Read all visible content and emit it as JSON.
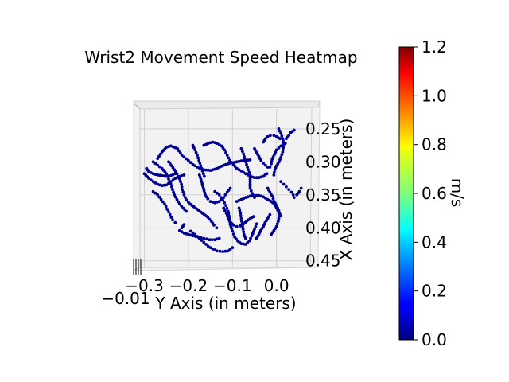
{
  "chart_data": {
    "type": "scatter",
    "projection": "3d",
    "title": "Wrist2 Movement Speed Heatmap",
    "xlabel": "Y Axis (in meters)",
    "ylabel": "X Axis (in meters)",
    "x_ticks": [
      "−0.3",
      "−0.2",
      "−0.1",
      "0.0"
    ],
    "x_tick_values": [
      -0.3,
      -0.2,
      -0.1,
      0.0
    ],
    "y_ticks": [
      "0.25",
      "0.30",
      "0.35",
      "0.40",
      "0.45"
    ],
    "y_tick_values": [
      0.25,
      0.3,
      0.35,
      0.4,
      0.45
    ],
    "z_tick_label": "−0.01",
    "xlim": [
      -0.31,
      0.08
    ],
    "ylim": [
      0.22,
      0.46
    ],
    "point_color": "#00008f",
    "colorbar": {
      "label": "m/s",
      "ticks": [
        "0.0",
        "0.2",
        "0.4",
        "0.6",
        "0.8",
        "1.0",
        "1.2"
      ],
      "tick_values": [
        0.0,
        0.2,
        0.4,
        0.6,
        0.8,
        1.0,
        1.2
      ],
      "range": [
        0.0,
        1.2
      ],
      "colormap": "jet"
    },
    "paths": [
      [
        [
          -0.27,
          0.295
        ],
        [
          -0.26,
          0.285
        ],
        [
          -0.25,
          0.278
        ],
        [
          -0.24,
          0.276
        ],
        [
          -0.225,
          0.28
        ],
        [
          -0.215,
          0.29
        ],
        [
          -0.2,
          0.298
        ],
        [
          -0.19,
          0.304
        ],
        [
          -0.18,
          0.308
        ],
        [
          -0.165,
          0.312
        ],
        [
          -0.15,
          0.313
        ],
        [
          -0.135,
          0.31
        ],
        [
          -0.12,
          0.305
        ],
        [
          -0.105,
          0.302
        ],
        [
          -0.09,
          0.3
        ],
        [
          -0.075,
          0.298
        ],
        [
          -0.06,
          0.297
        ]
      ],
      [
        [
          -0.295,
          0.31
        ],
        [
          -0.29,
          0.315
        ],
        [
          -0.28,
          0.318
        ],
        [
          -0.27,
          0.32
        ],
        [
          -0.26,
          0.321
        ],
        [
          -0.25,
          0.322
        ],
        [
          -0.24,
          0.321
        ],
        [
          -0.23,
          0.318
        ]
      ],
      [
        [
          -0.28,
          0.3
        ],
        [
          -0.27,
          0.305
        ],
        [
          -0.26,
          0.31
        ],
        [
          -0.25,
          0.318
        ],
        [
          -0.245,
          0.326
        ],
        [
          -0.24,
          0.334
        ],
        [
          -0.236,
          0.342
        ],
        [
          -0.232,
          0.35
        ],
        [
          -0.226,
          0.357
        ],
        [
          -0.22,
          0.364
        ],
        [
          -0.212,
          0.37
        ],
        [
          -0.205,
          0.375
        ]
      ],
      [
        [
          -0.3,
          0.318
        ],
        [
          -0.29,
          0.325
        ],
        [
          -0.28,
          0.33
        ],
        [
          -0.27,
          0.334
        ],
        [
          -0.26,
          0.336
        ],
        [
          -0.25,
          0.335
        ],
        [
          -0.24,
          0.33
        ],
        [
          -0.23,
          0.325
        ],
        [
          -0.22,
          0.322
        ],
        [
          -0.21,
          0.32
        ]
      ],
      [
        [
          -0.175,
          0.32
        ],
        [
          -0.17,
          0.33
        ],
        [
          -0.166,
          0.34
        ],
        [
          -0.162,
          0.35
        ],
        [
          -0.156,
          0.356
        ],
        [
          -0.15,
          0.36
        ],
        [
          -0.14,
          0.362
        ],
        [
          -0.13,
          0.36
        ],
        [
          -0.12,
          0.354
        ],
        [
          -0.112,
          0.346
        ],
        [
          -0.105,
          0.34
        ]
      ],
      [
        [
          -0.14,
          0.345
        ],
        [
          -0.13,
          0.35
        ],
        [
          -0.122,
          0.358
        ],
        [
          -0.115,
          0.366
        ],
        [
          -0.11,
          0.375
        ],
        [
          -0.107,
          0.385
        ],
        [
          -0.105,
          0.395
        ],
        [
          -0.1,
          0.405
        ],
        [
          -0.095,
          0.414
        ],
        [
          -0.088,
          0.42
        ],
        [
          -0.08,
          0.424
        ],
        [
          -0.07,
          0.425
        ],
        [
          -0.062,
          0.42
        ],
        [
          -0.056,
          0.412
        ],
        [
          -0.05,
          0.402
        ],
        [
          -0.045,
          0.394
        ]
      ],
      [
        [
          -0.09,
          0.36
        ],
        [
          -0.08,
          0.357
        ],
        [
          -0.07,
          0.354
        ],
        [
          -0.06,
          0.352
        ],
        [
          -0.05,
          0.351
        ],
        [
          -0.04,
          0.351
        ],
        [
          -0.03,
          0.353
        ],
        [
          -0.02,
          0.357
        ],
        [
          -0.012,
          0.36
        ],
        [
          -0.005,
          0.364
        ],
        [
          0.0,
          0.37
        ],
        [
          0.005,
          0.376
        ],
        [
          0.01,
          0.382
        ]
      ],
      [
        [
          -0.05,
          0.28
        ],
        [
          -0.045,
          0.286
        ],
        [
          -0.04,
          0.292
        ],
        [
          -0.035,
          0.298
        ],
        [
          -0.03,
          0.302
        ],
        [
          -0.025,
          0.305
        ],
        [
          -0.02,
          0.308
        ],
        [
          -0.015,
          0.308
        ],
        [
          -0.012,
          0.303
        ],
        [
          -0.01,
          0.296
        ],
        [
          -0.005,
          0.289
        ],
        [
          0.0,
          0.282
        ],
        [
          0.01,
          0.276
        ],
        [
          0.02,
          0.272
        ]
      ],
      [
        [
          0.005,
          0.25
        ],
        [
          0.01,
          0.257
        ],
        [
          0.014,
          0.265
        ],
        [
          0.016,
          0.275
        ],
        [
          0.014,
          0.285
        ],
        [
          0.01,
          0.293
        ],
        [
          0.006,
          0.3
        ],
        [
          0.0,
          0.306
        ],
        [
          -0.004,
          0.312
        ],
        [
          -0.006,
          0.32
        ]
      ],
      [
        [
          -0.03,
          0.27
        ],
        [
          -0.025,
          0.265
        ],
        [
          -0.02,
          0.262
        ],
        [
          -0.014,
          0.26
        ],
        [
          -0.006,
          0.26
        ],
        [
          0.0,
          0.262
        ],
        [
          0.008,
          0.265
        ],
        [
          0.015,
          0.268
        ],
        [
          0.022,
          0.265
        ],
        [
          0.028,
          0.26
        ],
        [
          0.032,
          0.256
        ],
        [
          0.04,
          0.252
        ]
      ],
      [
        [
          -0.02,
          0.34
        ],
        [
          -0.015,
          0.346
        ],
        [
          -0.01,
          0.352
        ],
        [
          -0.005,
          0.36
        ],
        [
          0.0,
          0.366
        ],
        [
          0.005,
          0.374
        ],
        [
          0.006,
          0.382
        ],
        [
          0.004,
          0.39
        ],
        [
          0.0,
          0.398
        ],
        [
          -0.006,
          0.404
        ],
        [
          -0.012,
          0.41
        ]
      ],
      [
        [
          -0.21,
          0.395
        ],
        [
          -0.215,
          0.4
        ],
        [
          -0.22,
          0.404
        ],
        [
          -0.21,
          0.408
        ],
        [
          -0.2,
          0.41
        ],
        [
          -0.19,
          0.412
        ],
        [
          -0.178,
          0.414
        ],
        [
          -0.165,
          0.416
        ],
        [
          -0.152,
          0.418
        ],
        [
          -0.14,
          0.418
        ],
        [
          -0.13,
          0.416
        ]
      ],
      [
        [
          -0.195,
          0.405
        ],
        [
          -0.185,
          0.41
        ],
        [
          -0.175,
          0.416
        ],
        [
          -0.165,
          0.422
        ],
        [
          -0.155,
          0.428
        ],
        [
          -0.145,
          0.432
        ],
        [
          -0.135,
          0.435
        ],
        [
          -0.122,
          0.436
        ],
        [
          -0.11,
          0.435
        ],
        [
          -0.1,
          0.43
        ]
      ],
      [
        [
          -0.12,
          0.37
        ],
        [
          -0.114,
          0.378
        ],
        [
          -0.11,
          0.386
        ],
        [
          -0.104,
          0.392
        ],
        [
          -0.097,
          0.396
        ],
        [
          -0.09,
          0.398
        ],
        [
          -0.082,
          0.397
        ],
        [
          -0.075,
          0.394
        ],
        [
          -0.068,
          0.39
        ],
        [
          -0.06,
          0.386
        ],
        [
          -0.052,
          0.383
        ]
      ],
      [
        [
          -0.165,
          0.275
        ],
        [
          -0.155,
          0.272
        ],
        [
          -0.145,
          0.27
        ],
        [
          -0.135,
          0.272
        ],
        [
          -0.125,
          0.276
        ],
        [
          -0.118,
          0.282
        ],
        [
          -0.112,
          0.29
        ],
        [
          -0.106,
          0.298
        ],
        [
          -0.098,
          0.304
        ],
        [
          -0.09,
          0.31
        ],
        [
          -0.08,
          0.314
        ],
        [
          -0.07,
          0.318
        ],
        [
          -0.06,
          0.322
        ],
        [
          -0.05,
          0.324
        ],
        [
          -0.04,
          0.324
        ],
        [
          -0.03,
          0.322
        ],
        [
          -0.022,
          0.318
        ]
      ],
      [
        [
          -0.08,
          0.28
        ],
        [
          -0.075,
          0.288
        ],
        [
          -0.072,
          0.296
        ],
        [
          -0.068,
          0.304
        ],
        [
          -0.064,
          0.312
        ],
        [
          -0.06,
          0.32
        ],
        [
          -0.06,
          0.33
        ],
        [
          -0.06,
          0.34
        ],
        [
          -0.055,
          0.348
        ],
        [
          -0.05,
          0.354
        ]
      ],
      [
        [
          -0.28,
          0.345
        ],
        [
          -0.27,
          0.35
        ],
        [
          -0.262,
          0.357
        ],
        [
          -0.254,
          0.364
        ],
        [
          -0.248,
          0.372
        ],
        [
          -0.242,
          0.38
        ],
        [
          -0.236,
          0.388
        ],
        [
          -0.23,
          0.392
        ]
      ],
      [
        [
          -0.245,
          0.3
        ],
        [
          -0.238,
          0.306
        ],
        [
          -0.232,
          0.312
        ],
        [
          -0.226,
          0.318
        ],
        [
          -0.22,
          0.326
        ],
        [
          -0.216,
          0.334
        ],
        [
          -0.214,
          0.342
        ],
        [
          -0.21,
          0.35
        ],
        [
          -0.204,
          0.358
        ],
        [
          -0.196,
          0.364
        ],
        [
          -0.188,
          0.368
        ],
        [
          -0.18,
          0.372
        ],
        [
          -0.172,
          0.376
        ],
        [
          -0.164,
          0.38
        ],
        [
          -0.156,
          0.384
        ],
        [
          -0.148,
          0.39
        ],
        [
          -0.142,
          0.396
        ],
        [
          -0.136,
          0.4
        ]
      ],
      [
        [
          -0.19,
          0.275
        ],
        [
          -0.185,
          0.282
        ],
        [
          -0.18,
          0.29
        ],
        [
          -0.176,
          0.298
        ],
        [
          -0.172,
          0.306
        ],
        [
          -0.168,
          0.314
        ],
        [
          -0.164,
          0.322
        ]
      ],
      [
        [
          -0.085,
          0.37
        ],
        [
          -0.082,
          0.378
        ],
        [
          -0.08,
          0.386
        ],
        [
          -0.078,
          0.394
        ],
        [
          -0.076,
          0.402
        ],
        [
          -0.074,
          0.41
        ],
        [
          -0.07,
          0.416
        ]
      ],
      [
        [
          0.01,
          0.33
        ],
        [
          0.016,
          0.334
        ],
        [
          0.022,
          0.338
        ],
        [
          0.028,
          0.342
        ],
        [
          0.034,
          0.346
        ],
        [
          0.038,
          0.35
        ],
        [
          0.04,
          0.354
        ],
        [
          0.046,
          0.35
        ],
        [
          0.052,
          0.345
        ],
        [
          0.056,
          0.34
        ]
      ],
      [
        [
          -0.015,
          0.38
        ],
        [
          -0.02,
          0.386
        ],
        [
          -0.026,
          0.392
        ],
        [
          -0.03,
          0.398
        ],
        [
          -0.036,
          0.404
        ],
        [
          -0.04,
          0.41
        ],
        [
          -0.046,
          0.416
        ]
      ]
    ]
  }
}
